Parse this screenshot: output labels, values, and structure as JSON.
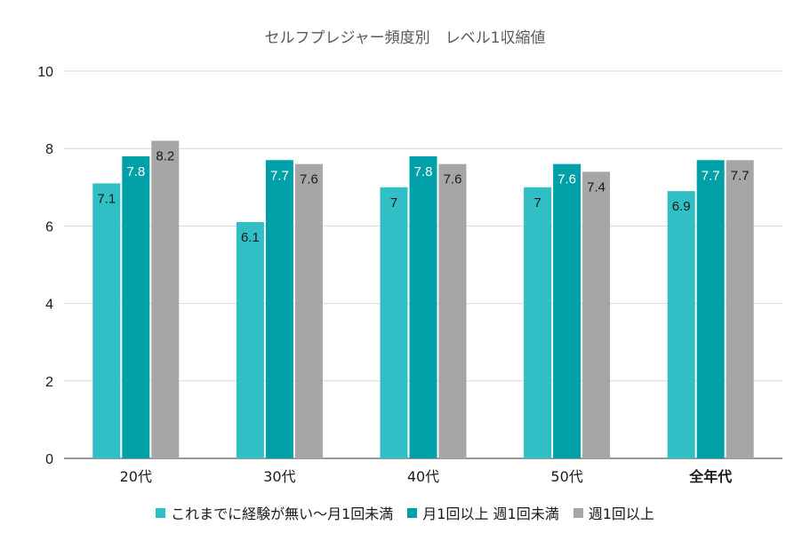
{
  "chart_data": {
    "type": "bar",
    "title": "セルフプレジャー頻度別　レベル1収縮値",
    "categories": [
      "20代",
      "30代",
      "40代",
      "50代",
      "全年代"
    ],
    "series": [
      {
        "name": "これまでに経験が無い～月1回未満",
        "color": "#2fbfc4",
        "values": [
          7.1,
          6.1,
          7,
          7,
          6.9
        ]
      },
      {
        "name": "月1回以上 週1回未満",
        "color": "#00a0a8",
        "values": [
          7.8,
          7.7,
          7.8,
          7.6,
          7.7
        ]
      },
      {
        "name": "週1回以上",
        "color": "#a6a6a6",
        "values": [
          8.2,
          7.6,
          7.6,
          7.4,
          7.7
        ]
      }
    ],
    "ylim": [
      0,
      10
    ],
    "yticks": [
      0,
      2,
      4,
      6,
      8,
      10
    ],
    "grid": true,
    "legend_position": "bottom",
    "label_colors": [
      "#1a1a1a",
      "#ffffff",
      "#1a1a1a"
    ]
  }
}
